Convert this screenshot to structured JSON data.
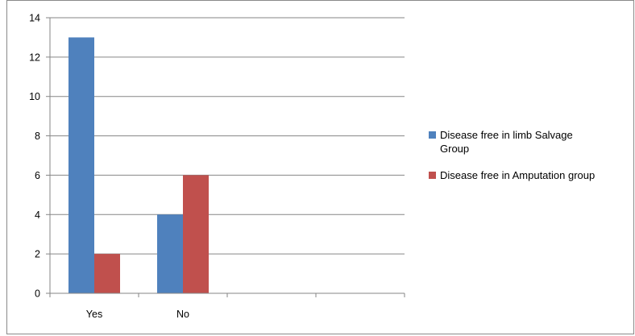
{
  "chart_data": {
    "type": "bar",
    "categories": [
      "Yes",
      "No",
      "",
      ""
    ],
    "series": [
      {
        "name": "Disease free in limb Salvage Group",
        "values": [
          13,
          4,
          null,
          null
        ],
        "color": "#4f81bd"
      },
      {
        "name": "Disease free in Amputation group",
        "values": [
          2,
          6,
          null,
          null
        ],
        "color": "#c0504d"
      }
    ],
    "title": "",
    "xlabel": "",
    "ylabel": "",
    "ylim": [
      0,
      14
    ],
    "yticks": [
      0,
      2,
      4,
      6,
      8,
      10,
      12,
      14
    ],
    "grid": true,
    "legend_position": "right"
  },
  "legend": [
    {
      "lines": [
        "Disease free in limb Salvage",
        "Group"
      ]
    },
    {
      "lines": [
        "Disease free in Amputation group"
      ]
    }
  ]
}
